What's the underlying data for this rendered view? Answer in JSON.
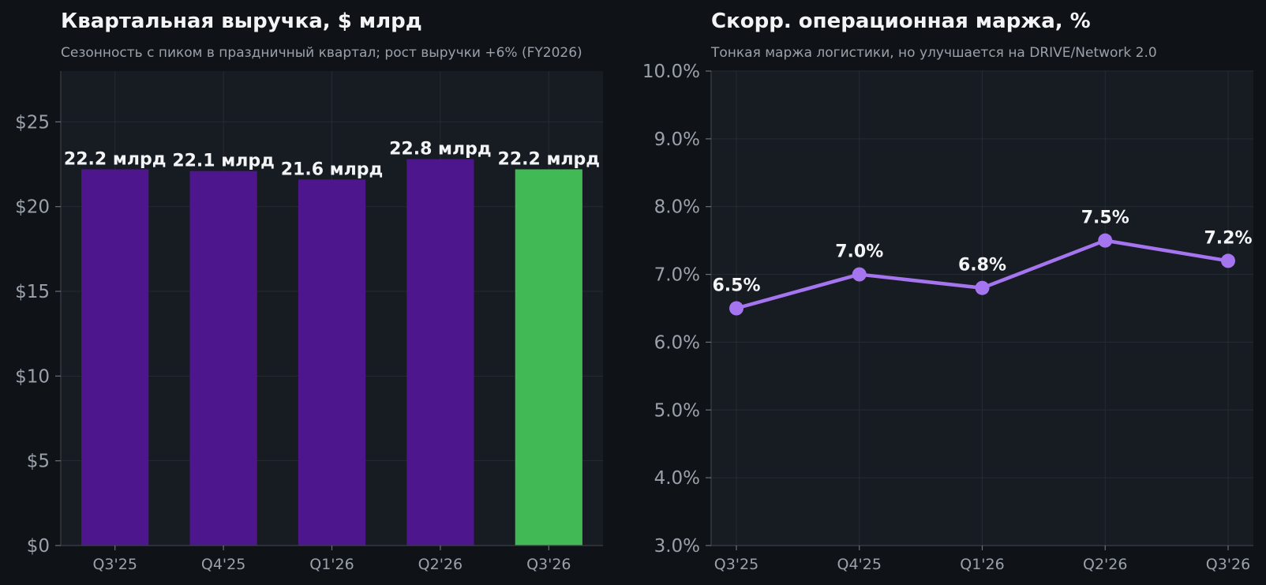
{
  "colors": {
    "background": "#0f1317",
    "panel": "#171b22",
    "bar_default": "#4d168c",
    "bar_highlight": "#41b955",
    "line": "#a575f0"
  },
  "chart_data": [
    {
      "type": "bar",
      "title": "Квартальная выручка, $ млрд",
      "subtitle": "Сезонность с пиком в праздничный квартал; рост выручки +6% (FY2026)",
      "categories": [
        "Q3'25",
        "Q4'25",
        "Q1'26",
        "Q2'26",
        "Q3'26"
      ],
      "values": [
        22.2,
        22.1,
        21.6,
        22.8,
        22.2
      ],
      "value_labels": [
        "22.2 млрд",
        "22.1 млрд",
        "21.6 млрд",
        "22.8 млрд",
        "22.2 млрд"
      ],
      "highlight_index": 4,
      "ylim": [
        0,
        28
      ],
      "yticks": [
        0,
        5,
        10,
        15,
        20,
        25
      ],
      "ytick_labels": [
        "$0",
        "$5",
        "$10",
        "$15",
        "$20",
        "$25"
      ],
      "grid": true
    },
    {
      "type": "line",
      "title": "Скорр. операционная маржа, %",
      "subtitle": "Тонкая маржа логистики, но улучшается на DRIVE/Network 2.0",
      "categories": [
        "Q3'25",
        "Q4'25",
        "Q1'26",
        "Q2'26",
        "Q3'26"
      ],
      "values": [
        6.5,
        7.0,
        6.8,
        7.5,
        7.2
      ],
      "value_labels": [
        "6.5%",
        "7.0%",
        "6.8%",
        "7.5%",
        "7.2%"
      ],
      "ylim": [
        3,
        10
      ],
      "yticks": [
        3,
        4,
        5,
        6,
        7,
        8,
        9,
        10
      ],
      "ytick_labels": [
        "3.0%",
        "4.0%",
        "5.0%",
        "6.0%",
        "7.0%",
        "8.0%",
        "9.0%",
        "10.0%"
      ],
      "grid": true
    }
  ]
}
